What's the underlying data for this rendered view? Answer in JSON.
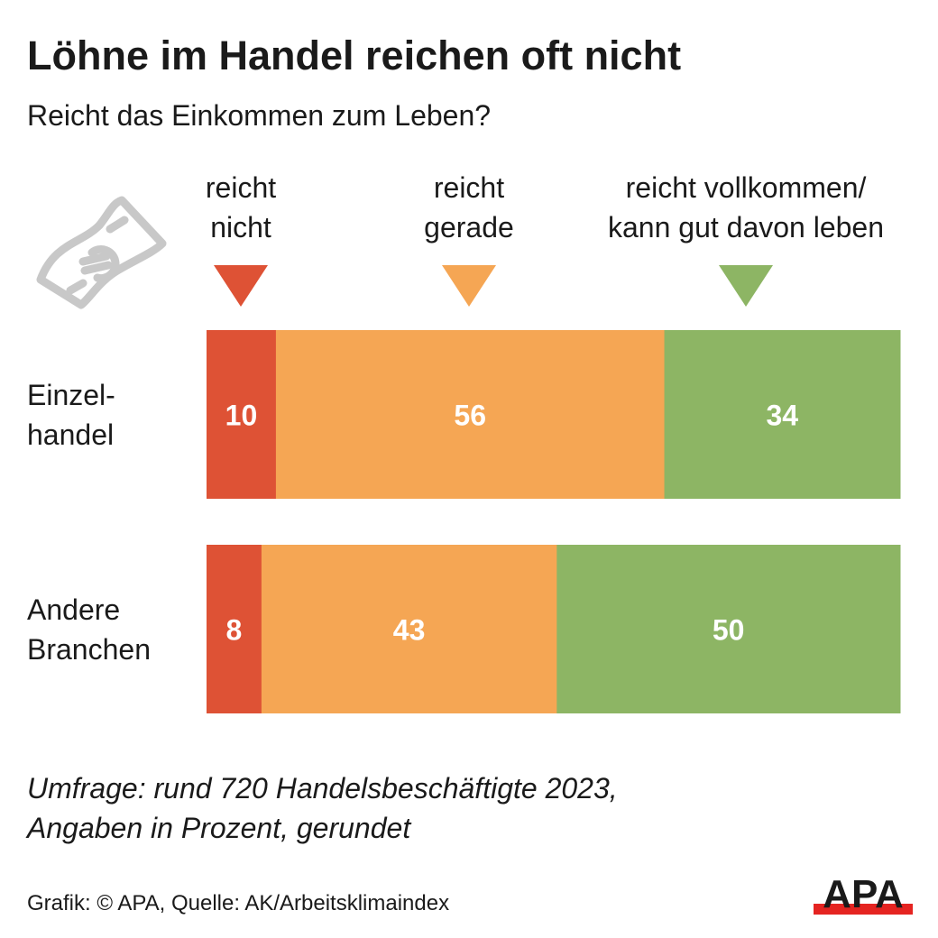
{
  "title": "Löhne im Handel reichen oft nicht",
  "subtitle": "Reicht das Einkommen zum Leben?",
  "chart_data": {
    "type": "bar",
    "orientation": "horizontal",
    "stacked": true,
    "categories": [
      "Einzel-\nhandel",
      "Andere\nBranchen"
    ],
    "series": [
      {
        "name": "reicht\nnicht",
        "color": "#de5235",
        "values": [
          10,
          8
        ]
      },
      {
        "name": "reicht\ngerade",
        "color": "#f5a654",
        "values": [
          56,
          43
        ]
      },
      {
        "name": "reicht vollkommen/\nkann gut davon leben",
        "color": "#8db564",
        "values": [
          34,
          50
        ]
      }
    ],
    "legend": "top",
    "grid": false
  },
  "note": "Umfrage: rund 720 Handelsbeschäftigte 2023,\nAngaben in Prozent, gerundet",
  "source": "Grafik: © APA, Quelle: AK/Arbeitsklimaindex",
  "logo": "APA",
  "icon": "euro-banknote-icon"
}
